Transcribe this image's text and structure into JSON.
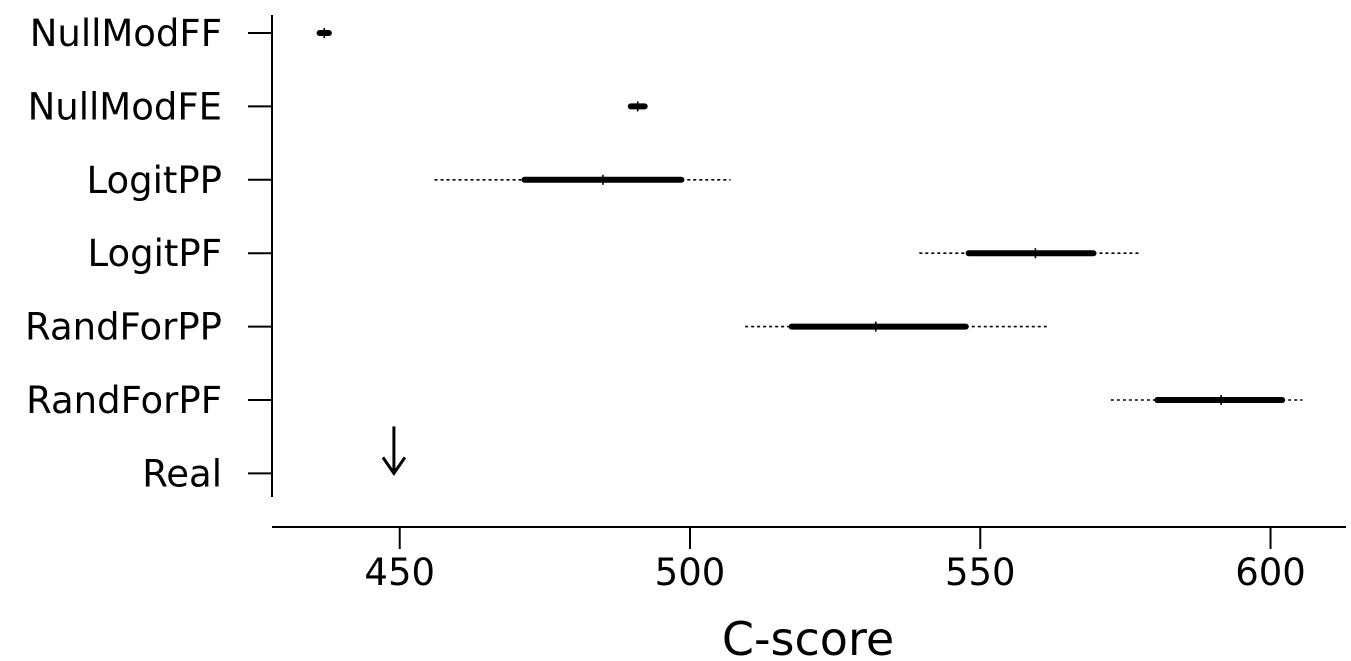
{
  "chart_data": {
    "type": "boxplot",
    "orientation": "horizontal",
    "xlabel": "C-score",
    "xlim": [
      428,
      613
    ],
    "xticks": [
      450,
      500,
      550,
      600
    ],
    "xtick_labels": [
      "450",
      "500",
      "550",
      "600"
    ],
    "grid": false,
    "categories": [
      "NullModFF",
      "NullModFE",
      "LogitPP",
      "LogitPF",
      "RandForPP",
      "RandForPF",
      "Real"
    ],
    "series": [
      {
        "category": "NullModFF",
        "whisker_low": 435.8,
        "q1": 436.2,
        "median": 437.0,
        "q3": 437.8,
        "whisker_high": 438.2
      },
      {
        "category": "NullModFE",
        "whisker_low": 489.4,
        "q1": 489.8,
        "median": 491.0,
        "q3": 492.2,
        "whisker_high": 492.6
      },
      {
        "category": "LogitPP",
        "whisker_low": 456.0,
        "q1": 471.5,
        "median": 485.0,
        "q3": 498.5,
        "whisker_high": 507.0
      },
      {
        "category": "LogitPF",
        "whisker_low": 539.5,
        "q1": 548.0,
        "median": 559.5,
        "q3": 569.5,
        "whisker_high": 577.5
      },
      {
        "category": "RandForPP",
        "whisker_low": 509.5,
        "q1": 517.5,
        "median": 532.0,
        "q3": 547.5,
        "whisker_high": 561.5
      },
      {
        "category": "RandForPF",
        "whisker_low": 572.5,
        "q1": 580.5,
        "median": 591.5,
        "q3": 602.0,
        "whisker_high": 605.5
      }
    ],
    "markers": [
      {
        "category": "Real",
        "type": "arrow-down",
        "x": 449
      }
    ]
  }
}
